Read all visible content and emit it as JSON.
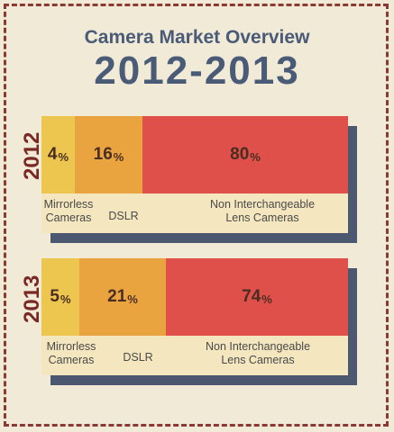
{
  "title": "Camera Market Overview",
  "subtitle": "2012-2013",
  "colors": {
    "mirrorless": "#ecc64f",
    "dslr": "#e9a43f",
    "non_interchangeable": "#de5049",
    "label_strip": "#f4e6bf",
    "shadow": "#4c5870",
    "frame_dash": "#8a3a33",
    "title": "#4a5b78",
    "year": "#7a2826"
  },
  "chart_data": [
    {
      "type": "bar",
      "title": "2012",
      "categories": [
        "Mirrorless Cameras",
        "DSLR",
        "Non Interchangeable Lens Cameras"
      ],
      "values": [
        4,
        16,
        80
      ],
      "unit": "%",
      "labels": [
        [
          "Mirrorless",
          "Cameras"
        ],
        [
          "DSLR"
        ],
        [
          "Non Interchangeable",
          "Lens Cameras"
        ]
      ]
    },
    {
      "type": "bar",
      "title": "2013",
      "categories": [
        "Mirrorless Cameras",
        "DSLR",
        "Non Interchangeable Lens Cameras"
      ],
      "values": [
        5,
        21,
        74
      ],
      "unit": "%",
      "labels": [
        [
          "Mirrorless",
          "Cameras"
        ],
        [
          "DSLR"
        ],
        [
          "Non Interchangeable",
          "Lens Cameras"
        ]
      ]
    }
  ]
}
